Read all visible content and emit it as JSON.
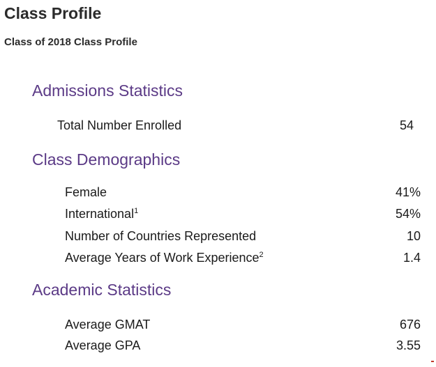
{
  "header": {
    "title": "Class Profile",
    "subtitle": "Class of 2018 Class Profile"
  },
  "sections": [
    {
      "heading": "Admissions Statistics",
      "rows": [
        {
          "label": "Total Number Enrolled",
          "value": "54"
        }
      ]
    },
    {
      "heading": "Class Demographics",
      "rows": [
        {
          "label": "Female",
          "value": "41%"
        },
        {
          "label": "International",
          "footnote": "1",
          "value": "54%"
        },
        {
          "label": "Number of Countries Represented",
          "value": "10"
        },
        {
          "label": "Average Years of Work Experience",
          "footnote": "2",
          "value": "1.4"
        }
      ]
    },
    {
      "heading": "Academic Statistics",
      "rows": [
        {
          "label": "Average GMAT",
          "value": "676"
        },
        {
          "label": "Average GPA",
          "value": "3.55"
        }
      ]
    }
  ]
}
